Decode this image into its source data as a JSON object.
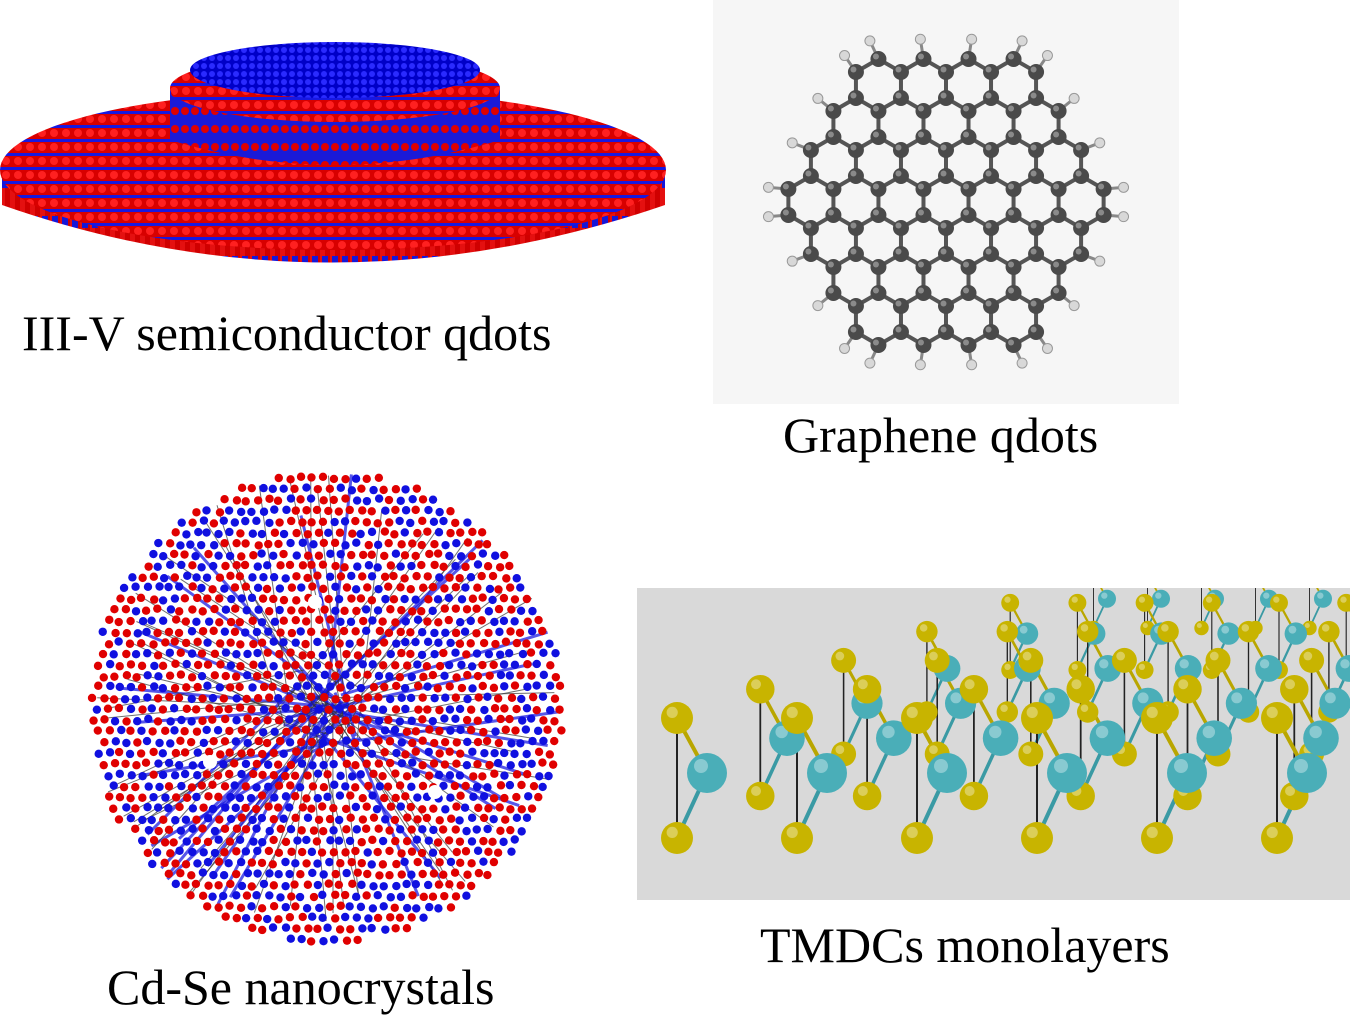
{
  "captions": {
    "iii_v": "III-V semiconductor qdots",
    "graphene": "Graphene qdots",
    "cdse": "Cd-Se nanocrystals",
    "tmdc": "TMDCs monolayers"
  },
  "colors": {
    "atom_red": "#e00000",
    "atom_blue": "#1010e0",
    "carbon_gray": "#4a4a4a",
    "hydrogen_light": "#d8d8d8",
    "graphene_bg": "#f6f6f6",
    "tmdc_bg": "#d9d9d9",
    "sulfur_yellow": "#c8b400",
    "metal_cyan": "#4aaeb8"
  }
}
